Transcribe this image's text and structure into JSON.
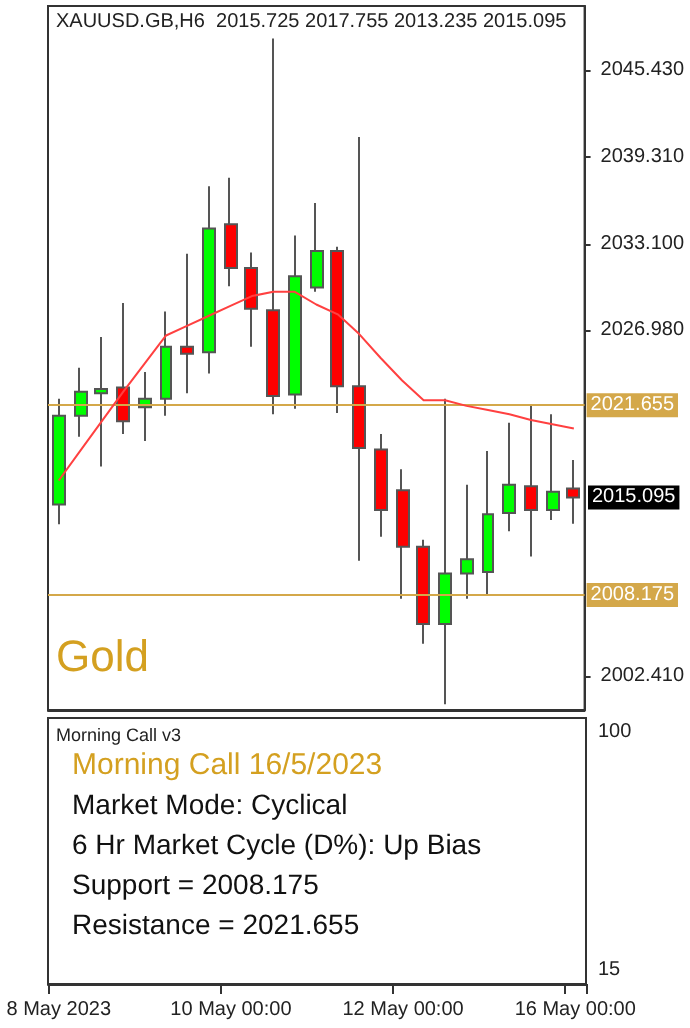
{
  "chart_data": [
    {
      "type": "candlestick",
      "title": "XAUUSD.GB,H6  2015.725 2017.755 2013.235 2015.095",
      "categories": [
        "8 May 2023",
        null,
        null,
        null,
        null,
        null,
        null,
        null,
        "10 May 00:00",
        null,
        null,
        null,
        null,
        null,
        null,
        null,
        "12 May 00:00",
        null,
        null,
        null,
        null,
        null,
        null,
        null,
        "16 May 00:00"
      ],
      "series": [
        {
          "type": "candlestick",
          "colors": [
            "#00ff00",
            "#00ff00",
            "#00ff00",
            "#ff0000",
            "#00ff00",
            "#00ff00",
            "#ff0000",
            "#00ff00",
            "#ff0000",
            "#ff0000",
            "#ff0000",
            "#00ff00",
            "#00ff00",
            "#ff0000",
            "#ff0000",
            "#ff0000",
            "#ff0000",
            "#ff0000",
            "#00ff00",
            "#00ff00",
            "#00ff00",
            "#00ff00",
            "#ff0000",
            "#00ff00",
            "#ff0000"
          ],
          "ohlc": [
            [
              2014.6,
              2022.1,
              2013.2,
              2020.9
            ],
            [
              2020.9,
              2024.3,
              2019.4,
              2022.6
            ],
            [
              2022.5,
              2026.5,
              2017.3,
              2022.8
            ],
            [
              2022.9,
              2028.9,
              2019.6,
              2020.5
            ],
            [
              2021.5,
              2024.0,
              2019.1,
              2022.1
            ],
            [
              2022.1,
              2028.3,
              2020.9,
              2025.8
            ],
            [
              2025.8,
              2032.4,
              2022.5,
              2025.3
            ],
            [
              2025.4,
              2037.2,
              2023.9,
              2034.2
            ],
            [
              2034.5,
              2037.8,
              2030.1,
              2031.4
            ],
            [
              2031.4,
              2032.5,
              2025.8,
              2028.5
            ],
            [
              2028.4,
              2047.7,
              2021.0,
              2022.3
            ],
            [
              2022.4,
              2033.7,
              2021.4,
              2030.8
            ],
            [
              2030.0,
              2036.0,
              2029.7,
              2032.6
            ],
            [
              2032.6,
              2032.9,
              2021.1,
              2023.0
            ],
            [
              2023.0,
              2040.7,
              2010.6,
              2018.6
            ],
            [
              2018.5,
              2019.6,
              2012.3,
              2014.2
            ],
            [
              2015.6,
              2017.1,
              2007.9,
              2011.6
            ],
            [
              2011.6,
              2012.1,
              2004.7,
              2006.1
            ],
            [
              2006.1,
              2022.1,
              2000.4,
              2009.7
            ],
            [
              2009.7,
              2016.0,
              2007.9,
              2010.7
            ],
            [
              2009.8,
              2018.4,
              2008.2,
              2013.9
            ],
            [
              2014.0,
              2020.4,
              2012.7,
              2016.0
            ],
            [
              2015.9,
              2021.6,
              2010.9,
              2014.2
            ],
            [
              2014.2,
              2021.0,
              2013.5,
              2015.5
            ],
            [
              2015.725,
              2017.755,
              2013.235,
              2015.095
            ]
          ]
        },
        {
          "type": "line",
          "color": "#ff4040",
          "marker": "none",
          "values": [
            2016.3,
            2018.4,
            2020.5,
            2022.6,
            2024.6,
            2026.6,
            2027.3,
            2028.0,
            2028.7,
            2029.4,
            2029.7,
            2029.7,
            2028.8,
            2028.1,
            2026.7,
            2025.0,
            2023.4,
            2022.0,
            2022.0,
            2021.6,
            2021.3,
            2021.0,
            2020.6,
            2020.3,
            2020.0
          ]
        }
      ],
      "ylim": [
        2000,
        2050
      ],
      "yticks": [
        {
          "value": 2002.41,
          "label": "2002.410"
        },
        {
          "value": 2026.98,
          "label": "2026.980"
        },
        {
          "value": 2033.1,
          "label": "2033.100"
        },
        {
          "value": 2039.31,
          "label": "2039.310"
        },
        {
          "value": 2045.43,
          "label": "2045.430"
        }
      ],
      "tick_labels": "y",
      "ref_lines": [
        {
          "axis": "y",
          "value": 2021.655,
          "label": "2021.655",
          "color": "#d4a84a"
        },
        {
          "axis": "y",
          "value": 2008.175,
          "label": "2008.175",
          "color": "#d4a84a"
        }
      ],
      "annotations": [
        "Gold",
        "2015.095"
      ]
    },
    {
      "type": "other",
      "title": "Morning Call v3",
      "subtitle": "Morning Call 16/5/2023",
      "annotations": [
        "Market Mode: Cyclical",
        "6 Hr Market Cycle (D%): Up Bias",
        "Support = 2008.175",
        "Resistance = 2021.655",
        "100",
        "15"
      ]
    }
  ]
}
